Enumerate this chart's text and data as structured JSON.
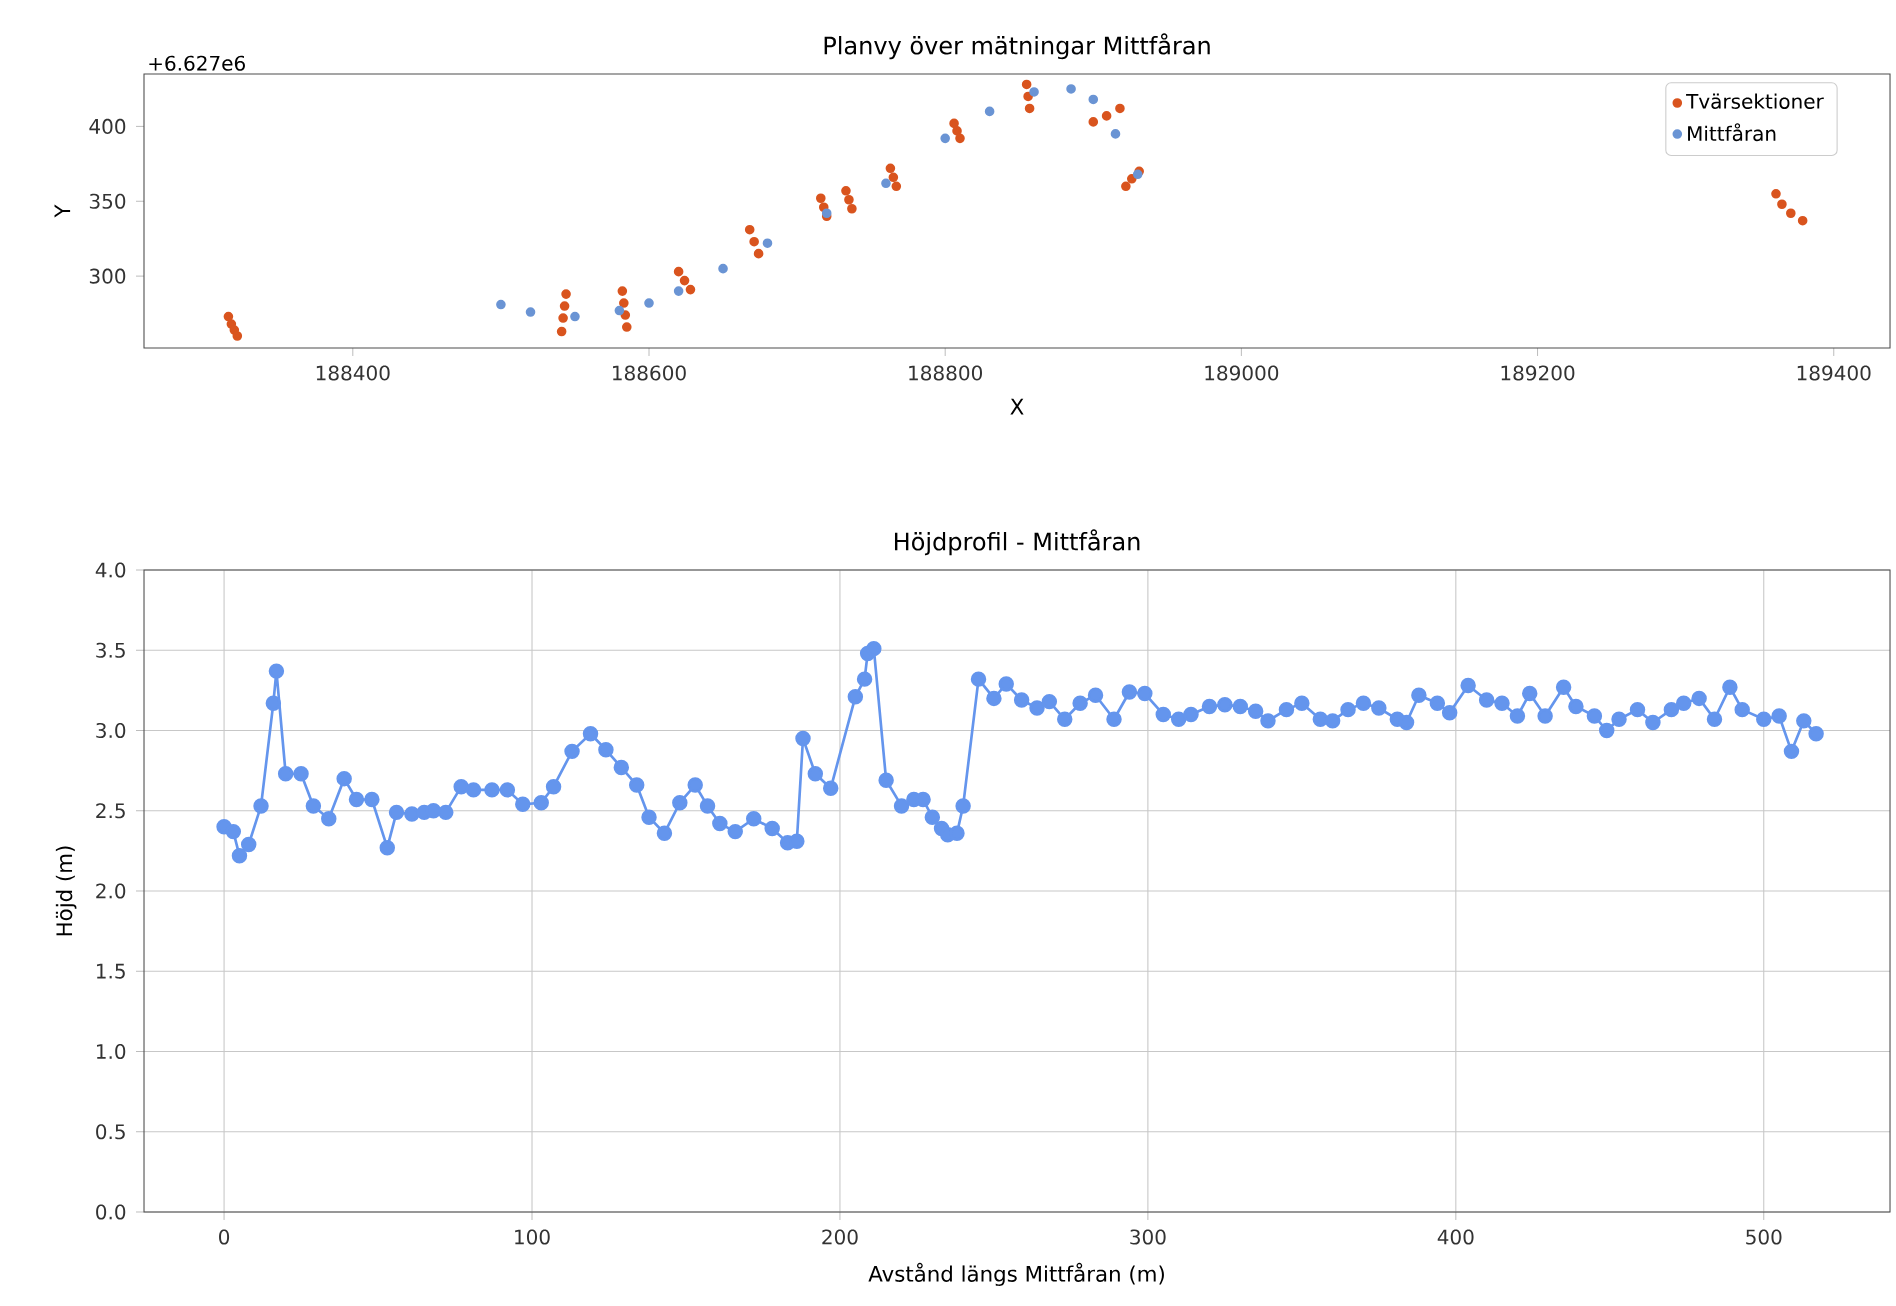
{
  "chart_data": [
    {
      "type": "scatter",
      "title": "Planvy över mätningar Mittfåran",
      "xlabel": "X",
      "ylabel": "Y",
      "annotations": [
        "+6.627e6"
      ],
      "xlim": [
        188259,
        189438
      ],
      "ylim": [
        252,
        435
      ],
      "xticks": [
        188400,
        188600,
        188800,
        189000,
        189200,
        189400
      ],
      "yticks": [
        300,
        350,
        400
      ],
      "legend": "top right",
      "marker": "circle",
      "series": [
        {
          "name": "Tvärsektioner",
          "color": "#d9541e",
          "x": [
            188316,
            188318,
            188320,
            188322,
            188544,
            188543,
            188542,
            188541,
            188582,
            188583,
            188584,
            188585,
            188620,
            188624,
            188628,
            188668,
            188671,
            188674,
            188716,
            188718,
            188720,
            188733,
            188735,
            188737,
            188763,
            188765,
            188767,
            188806,
            188808,
            188810,
            188855,
            188856,
            188857,
            188900,
            188909,
            188918,
            188922,
            188926,
            188931,
            189361,
            189365,
            189371,
            189379
          ],
          "values": [
            273,
            268,
            264,
            260,
            288,
            280,
            272,
            263,
            290,
            282,
            274,
            266,
            303,
            297,
            291,
            331,
            323,
            315,
            352,
            346,
            340,
            357,
            351,
            345,
            372,
            366,
            360,
            402,
            397,
            392,
            428,
            420,
            412,
            403,
            407,
            412,
            360,
            365,
            370,
            355,
            348,
            342,
            337
          ]
        },
        {
          "name": "Mittfåran",
          "color": "#6a94d4",
          "x": [
            188500,
            188520,
            188550,
            188580,
            188600,
            188620,
            188650,
            188680,
            188720,
            188760,
            188800,
            188830,
            188860,
            188885,
            188900,
            188915,
            188930
          ],
          "values": [
            281,
            276,
            273,
            277,
            282,
            290,
            305,
            322,
            342,
            362,
            392,
            410,
            423,
            425,
            418,
            395,
            368
          ]
        }
      ]
    },
    {
      "type": "line",
      "title": "Höjdprofil - Mittfåran",
      "xlabel": "Avstånd längs Mittfåran (m)",
      "ylabel": "Höjd (m)",
      "xlim": [
        -26,
        541
      ],
      "ylim": [
        0,
        4
      ],
      "xticks": [
        0,
        100,
        200,
        300,
        400,
        500
      ],
      "yticks": [
        {
          "value": 0,
          "label": "0.0"
        },
        {
          "value": 0.5,
          "label": "0.5"
        },
        {
          "value": 1,
          "label": "1.0"
        },
        {
          "value": 1.5,
          "label": "1.5"
        },
        {
          "value": 2,
          "label": "2.0"
        },
        {
          "value": 2.5,
          "label": "2.5"
        },
        {
          "value": 3,
          "label": "3.0"
        },
        {
          "value": 3.5,
          "label": "3.5"
        },
        {
          "value": 4,
          "label": "4.0"
        }
      ],
      "grid": true,
      "marker": "circle",
      "color": "#6495ed",
      "x": [
        0,
        3,
        5,
        8,
        12,
        16,
        17,
        20,
        25,
        29,
        34,
        39,
        43,
        48,
        53,
        56,
        61,
        65,
        68,
        72,
        77,
        81,
        87,
        92,
        97,
        103,
        107,
        113,
        119,
        124,
        129,
        134,
        138,
        143,
        148,
        153,
        157,
        161,
        166,
        172,
        178,
        183,
        186,
        188,
        192,
        197,
        205,
        208,
        209,
        211,
        215,
        220,
        224,
        227,
        230,
        233,
        235,
        238,
        240,
        245,
        250,
        254,
        259,
        264,
        268,
        273,
        278,
        283,
        289,
        294,
        299,
        305,
        310,
        314,
        320,
        325,
        330,
        335,
        339,
        345,
        350,
        356,
        360,
        365,
        370,
        375,
        381,
        384,
        388,
        394,
        398,
        404,
        410,
        415,
        420,
        424,
        429,
        435,
        439,
        445,
        449,
        453,
        459,
        464,
        470,
        474,
        479,
        484,
        489,
        493,
        500,
        505,
        509,
        513,
        517
      ],
      "values": [
        2.4,
        2.37,
        2.22,
        2.29,
        2.53,
        3.17,
        3.37,
        2.73,
        2.73,
        2.53,
        2.45,
        2.7,
        2.57,
        2.57,
        2.27,
        2.49,
        2.48,
        2.49,
        2.5,
        2.49,
        2.65,
        2.63,
        2.63,
        2.63,
        2.54,
        2.55,
        2.65,
        2.87,
        2.98,
        2.88,
        2.77,
        2.66,
        2.46,
        2.36,
        2.55,
        2.66,
        2.53,
        2.42,
        2.37,
        2.45,
        2.39,
        2.3,
        2.31,
        2.95,
        2.73,
        2.64,
        3.21,
        3.32,
        3.48,
        3.51,
        2.69,
        2.53,
        2.57,
        2.57,
        2.46,
        2.39,
        2.35,
        2.36,
        2.53,
        3.32,
        3.2,
        3.29,
        3.19,
        3.14,
        3.18,
        3.07,
        3.17,
        3.22,
        3.07,
        3.24,
        3.23,
        3.1,
        3.07,
        3.1,
        3.15,
        3.16,
        3.15,
        3.12,
        3.06,
        3.13,
        3.17,
        3.07,
        3.06,
        3.13,
        3.17,
        3.14,
        3.07,
        3.05,
        3.22,
        3.17,
        3.11,
        3.28,
        3.19,
        3.17,
        3.09,
        3.23,
        3.09,
        3.27,
        3.15,
        3.09,
        3.0,
        3.07,
        3.13,
        3.05,
        3.13,
        3.17,
        3.2,
        3.07,
        3.27,
        3.13,
        3.07,
        3.09,
        2.87,
        3.06,
        2.98
      ]
    }
  ]
}
